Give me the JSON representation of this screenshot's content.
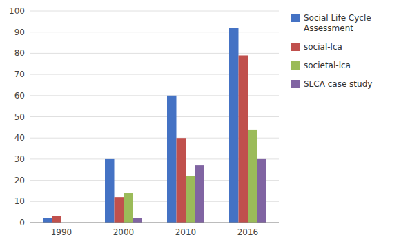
{
  "chart_data": {
    "type": "bar",
    "categories": [
      "1990",
      "2000",
      "2010",
      "2016"
    ],
    "series": [
      {
        "name": "Social Life Cycle\nAssessment",
        "color": "#4472C4",
        "values": [
          2,
          30,
          60,
          92
        ]
      },
      {
        "name": "social-lca",
        "color": "#C0504D",
        "values": [
          3,
          12,
          40,
          79
        ]
      },
      {
        "name": "societal-lca",
        "color": "#9BBB59",
        "values": [
          0,
          14,
          22,
          44
        ]
      },
      {
        "name": "SLCA case study",
        "color": "#8064A2",
        "values": [
          0,
          2,
          27,
          30
        ]
      }
    ],
    "ylim": [
      0,
      100
    ],
    "yticks": [
      0,
      10,
      20,
      30,
      40,
      50,
      60,
      70,
      80,
      90,
      100
    ],
    "grid": true,
    "legend": "right"
  }
}
